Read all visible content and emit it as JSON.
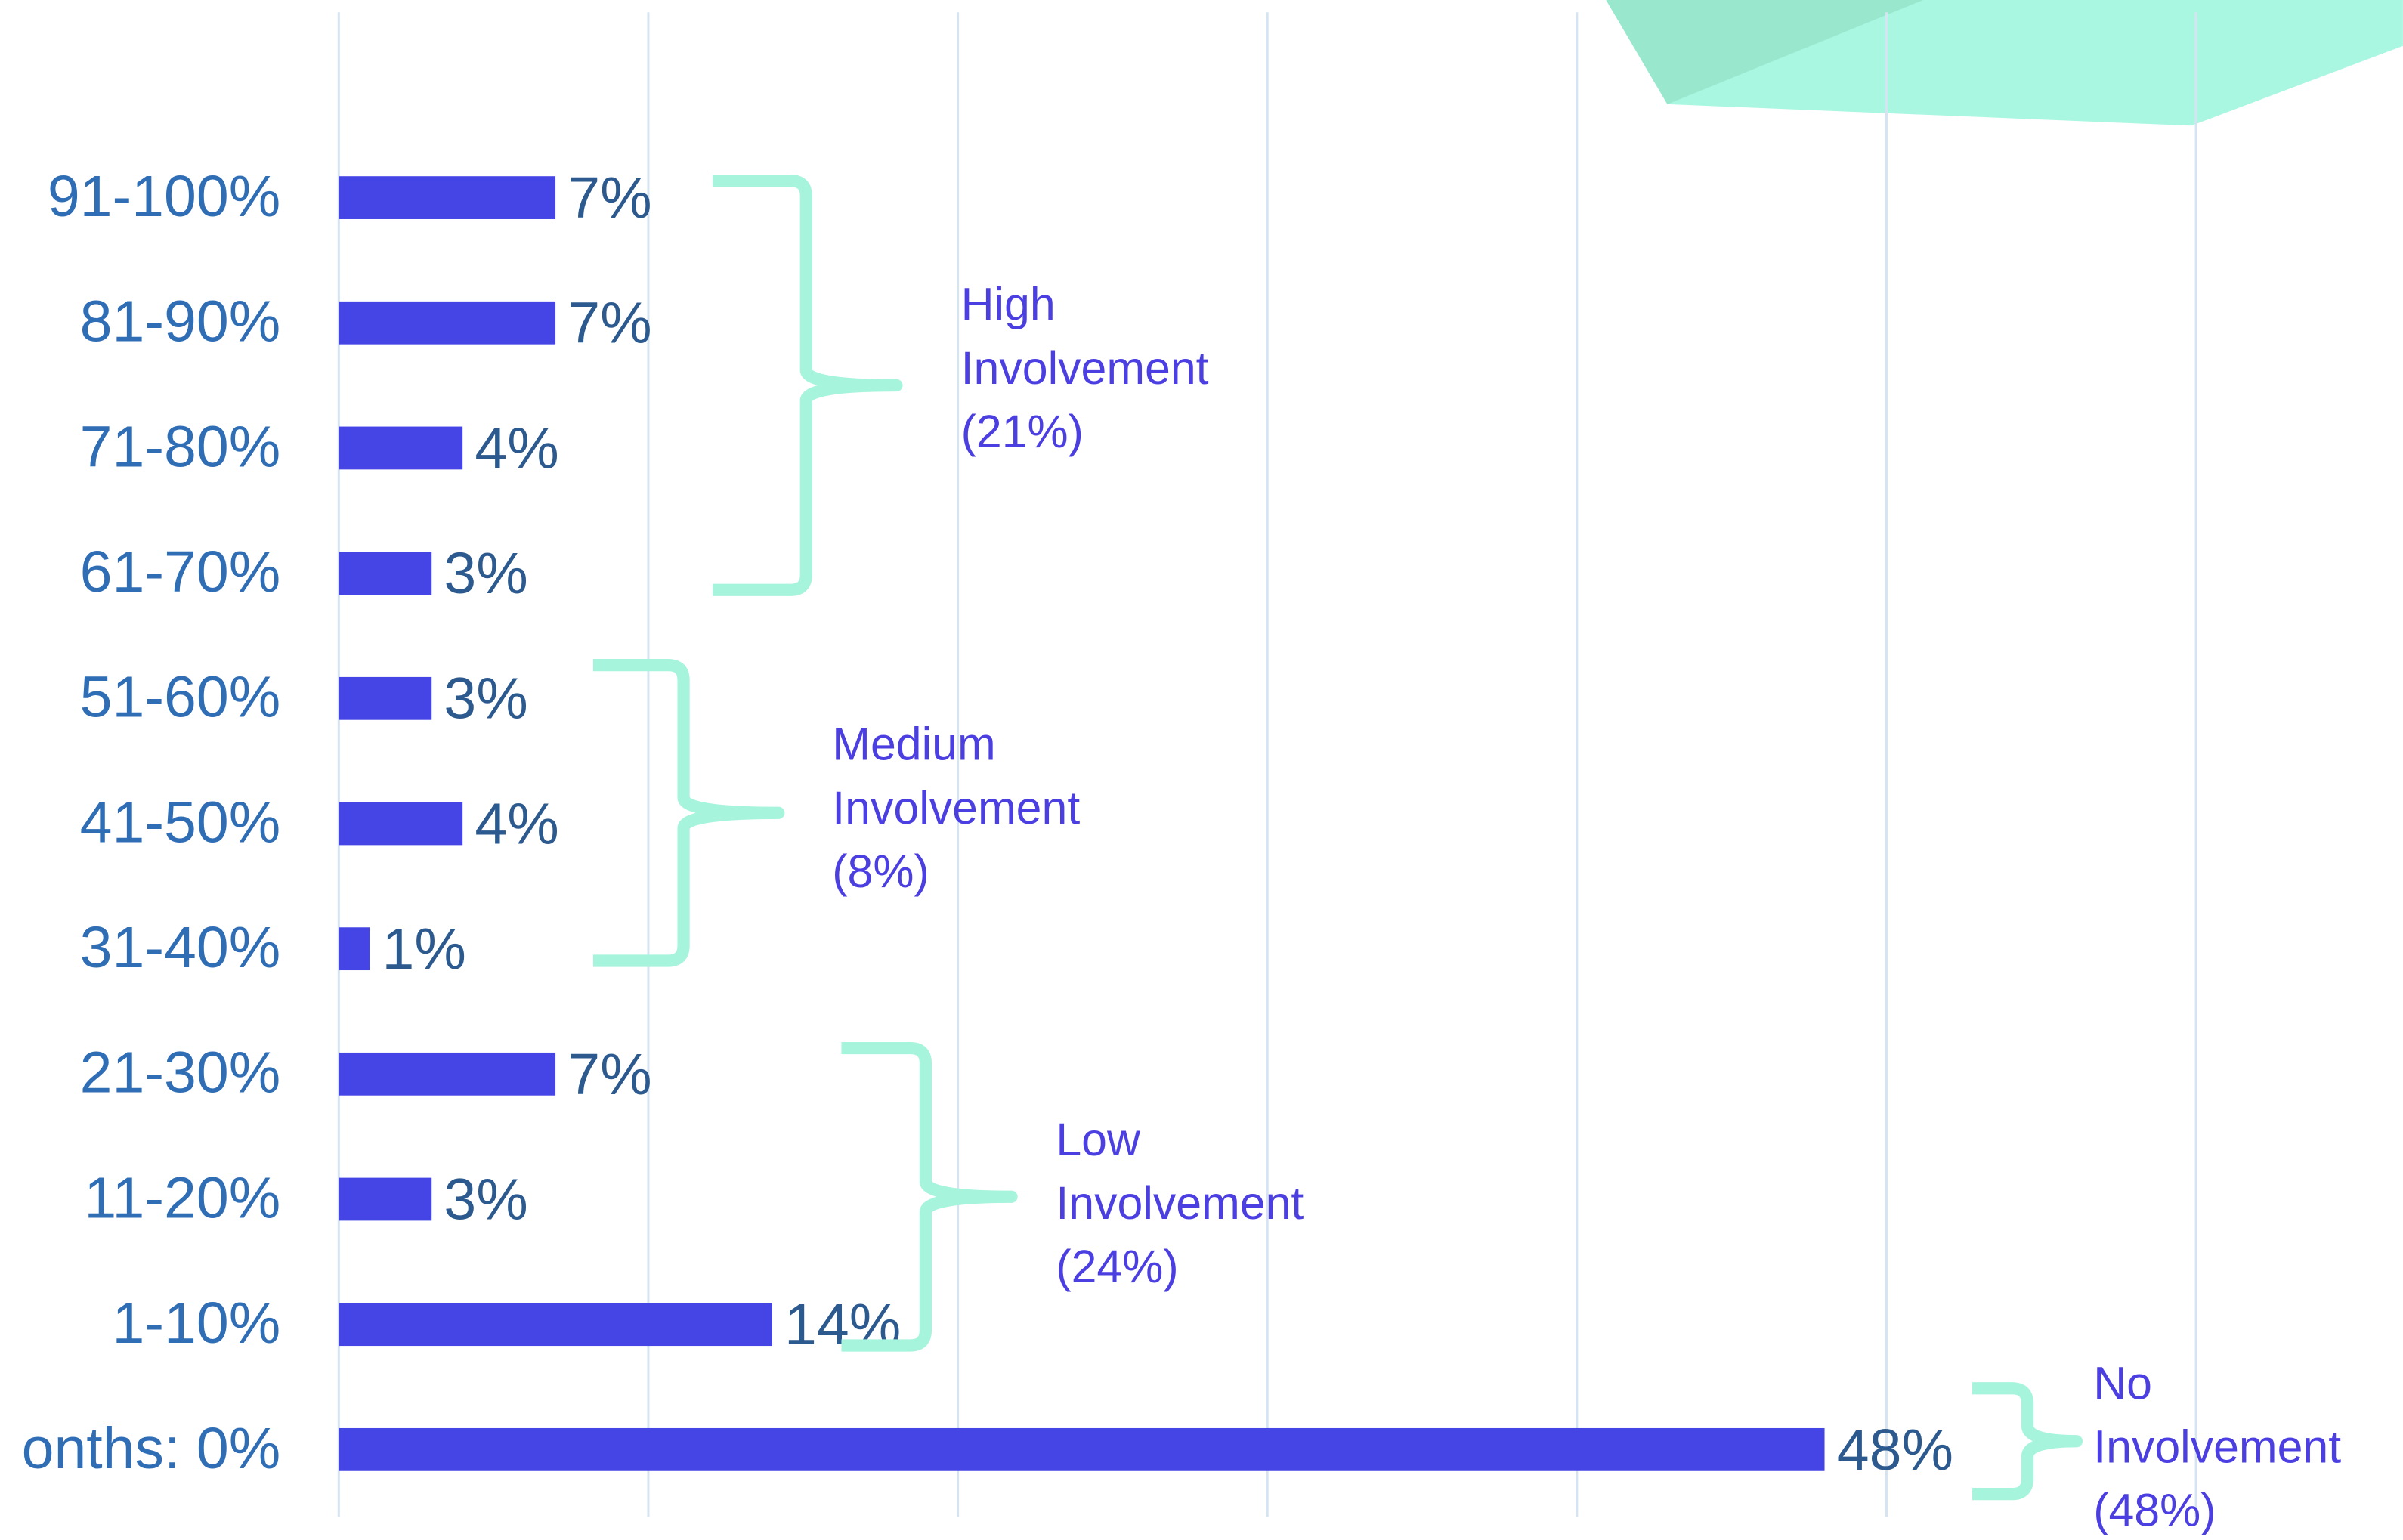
{
  "chart_data": {
    "type": "bar",
    "orientation": "horizontal",
    "categories": [
      "91-100%",
      "81-90%",
      "71-80%",
      "61-70%",
      "51-60%",
      "41-50%",
      "31-40%",
      "21-30%",
      "11-20%",
      "1-10%",
      "onths: 0%"
    ],
    "values": [
      7,
      7,
      4,
      3,
      3,
      4,
      1,
      7,
      3,
      14,
      48
    ],
    "value_labels": [
      "7%",
      "7%",
      "4%",
      "3%",
      "3%",
      "4%",
      "1%",
      "7%",
      "3%",
      "14%",
      "48%"
    ],
    "color": "#4545e6",
    "xlim": [
      0,
      60
    ],
    "xticks": [
      0,
      10,
      20,
      30,
      40,
      50,
      60
    ],
    "grid": true,
    "annotations": [
      {
        "text": [
          "High",
          "Involvement",
          "(21%)"
        ]
      },
      {
        "text": [
          "Medium",
          "Involvement",
          "(8%)"
        ]
      },
      {
        "text": [
          "Low",
          "Involvement",
          "(24%)"
        ]
      },
      {
        "text": [
          "No",
          "Involvement",
          "(48%)"
        ]
      }
    ]
  }
}
